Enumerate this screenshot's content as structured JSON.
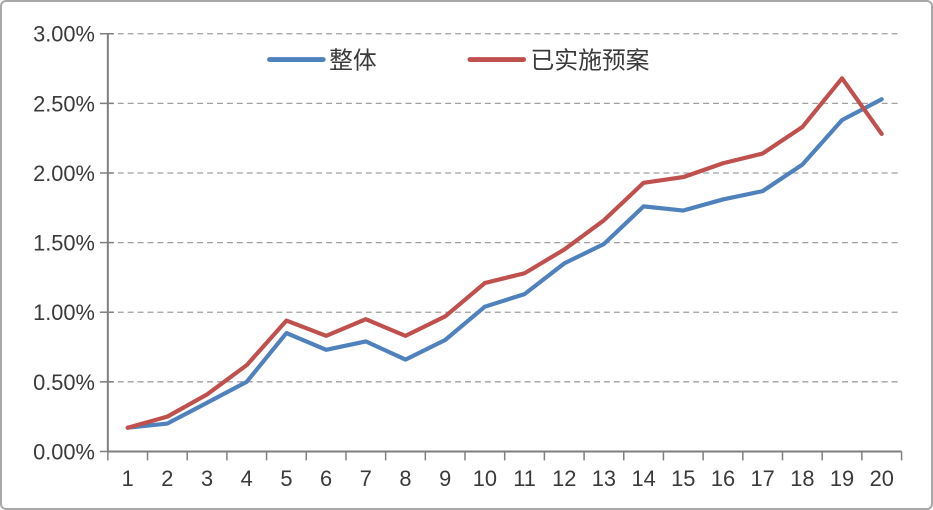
{
  "chart_data": {
    "type": "line",
    "title": "",
    "xlabel": "",
    "ylabel": "",
    "x_categories": [
      "1",
      "2",
      "3",
      "4",
      "5",
      "6",
      "7",
      "8",
      "9",
      "10",
      "11",
      "12",
      "13",
      "14",
      "15",
      "16",
      "17",
      "18",
      "19",
      "20"
    ],
    "series": [
      {
        "name": "整体",
        "color": "#4F81BD",
        "values_pct": [
          0.17,
          0.2,
          0.35,
          0.5,
          0.85,
          0.73,
          0.79,
          0.66,
          0.8,
          1.04,
          1.13,
          1.35,
          1.49,
          1.76,
          1.73,
          1.81,
          1.87,
          2.06,
          2.38,
          2.53
        ]
      },
      {
        "name": "已实施预案",
        "color": "#C0504D",
        "values_pct": [
          0.17,
          0.25,
          0.41,
          0.62,
          0.94,
          0.83,
          0.95,
          0.83,
          0.97,
          1.21,
          1.28,
          1.45,
          1.66,
          1.93,
          1.97,
          2.07,
          2.14,
          2.33,
          2.68,
          2.28
        ]
      }
    ],
    "y_axis": {
      "min_pct": 0.0,
      "max_pct": 3.0,
      "tick_step_pct": 0.5,
      "tick_labels": [
        "0.00%",
        "0.50%",
        "1.00%",
        "1.50%",
        "2.00%",
        "2.50%",
        "3.00%"
      ]
    },
    "grid": {
      "horizontal_dashed": true
    },
    "legend": {
      "position": "top-center-inside",
      "entries": [
        "整体",
        "已实施预案"
      ]
    },
    "draw_order_note": "red series drawn on top of blue"
  },
  "style_colors": {
    "series_blue": "#4F81BD",
    "series_red": "#C0504D",
    "gridline": "#a0a0a0",
    "axis": "#7f7f7f",
    "label_text": "#3a3a3a",
    "frame_border": "#a8a8a8",
    "background": "#ffffff"
  }
}
